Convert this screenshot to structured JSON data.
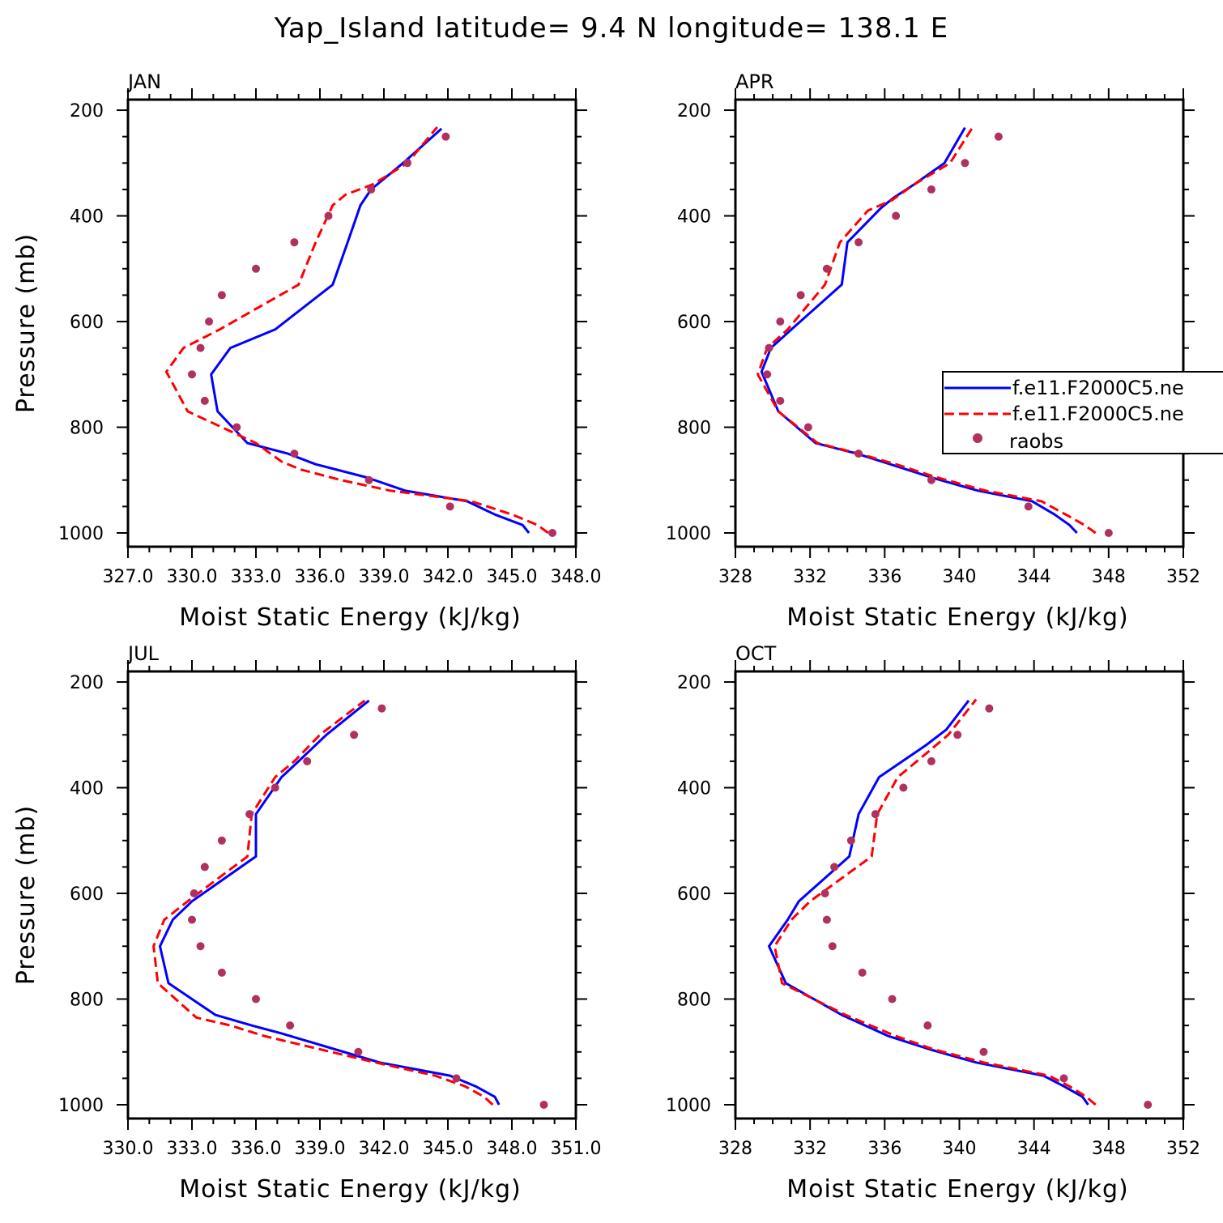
{
  "title": "Yap_Island  latitude= 9.4 N longitude= 138.1 E",
  "colors": {
    "model_1": "#0000ff",
    "model_2": "#ff0000",
    "raobs": "#b03060"
  },
  "legend": {
    "entries": [
      "f.e11.F2000C5.ne",
      "f.e11.F2000C5.ne",
      "raobs"
    ],
    "placement": "panel APR, right, partially cut off"
  },
  "chart_data": [
    {
      "type": "line",
      "panel": "JAN",
      "xlabel": "Moist Static Energy (kJ/kg)",
      "ylabel": "Pressure (mb)",
      "xlim": [
        327.0,
        348.0
      ],
      "xticks": [
        "327.0",
        "330.0",
        "333.0",
        "336.0",
        "339.0",
        "342.0",
        "345.0",
        "348.0"
      ],
      "ylim": [
        200,
        1000
      ],
      "yticks": [
        "200",
        "400",
        "600",
        "800",
        "1000"
      ],
      "y_inverted": true,
      "series": [
        {
          "legend_index": 0,
          "style": "solid",
          "x": [
            345.8,
            345.5,
            344.2,
            342.9,
            340.0,
            338.2,
            335.8,
            334.5,
            332.6,
            331.2,
            330.9,
            331.8,
            333.9,
            336.6,
            337.3,
            337.9,
            338.4,
            339.9,
            341.7
          ],
          "y": [
            1000,
            985,
            965,
            940,
            920,
            895,
            870,
            850,
            830,
            770,
            700,
            650,
            615,
            530,
            450,
            380,
            350,
            300,
            235
          ]
        },
        {
          "legend_index": 1,
          "style": "dashed",
          "x": [
            346.7,
            346.2,
            345.0,
            343.1,
            339.3,
            337.0,
            335.1,
            334.2,
            333.0,
            329.8,
            328.8,
            329.6,
            331.3,
            335.0,
            335.8,
            336.6,
            337.2,
            338.5,
            340.1,
            341.5
          ],
          "y": [
            1000,
            985,
            965,
            940,
            920,
            900,
            880,
            865,
            830,
            770,
            695,
            650,
            615,
            530,
            450,
            380,
            360,
            340,
            300,
            232
          ]
        },
        {
          "legend_index": 2,
          "style": "dots",
          "x": [
            346.9,
            342.1,
            338.3,
            334.8,
            332.1,
            330.6,
            330.0,
            330.4,
            330.8,
            331.4,
            333.0,
            334.8,
            336.4,
            338.4,
            340.1,
            341.9
          ],
          "y": [
            1000,
            950,
            900,
            850,
            800,
            750,
            700,
            650,
            600,
            550,
            500,
            450,
            400,
            350,
            300,
            250
          ]
        }
      ]
    },
    {
      "type": "line",
      "panel": "APR",
      "xlabel": "Moist Static Energy (kJ/kg)",
      "ylabel": "",
      "xlim": [
        328,
        352
      ],
      "xticks": [
        "328",
        "332",
        "336",
        "340",
        "344",
        "348",
        "352"
      ],
      "ylim": [
        200,
        1000
      ],
      "yticks": [
        "200",
        "400",
        "600",
        "800",
        "1000"
      ],
      "y_inverted": true,
      "series": [
        {
          "legend_index": 0,
          "style": "solid",
          "x": [
            346.3,
            345.9,
            345.1,
            343.9,
            341.0,
            338.5,
            336.3,
            334.5,
            332.3,
            330.3,
            329.4,
            329.9,
            331.0,
            333.7,
            334.0,
            335.8,
            336.5,
            337.6,
            339.2,
            340.3
          ],
          "y": [
            1000,
            985,
            965,
            940,
            920,
            895,
            870,
            850,
            830,
            770,
            695,
            650,
            615,
            530,
            450,
            385,
            365,
            340,
            300,
            233
          ]
        },
        {
          "legend_index": 1,
          "style": "dashed",
          "x": [
            347.3,
            346.7,
            345.7,
            344.4,
            341.4,
            338.8,
            336.6,
            334.6,
            332.4,
            330.3,
            329.2,
            329.7,
            330.8,
            332.8,
            333.6,
            335.1,
            336.4,
            337.6,
            339.5,
            340.7
          ],
          "y": [
            1000,
            985,
            965,
            940,
            920,
            895,
            870,
            850,
            830,
            770,
            700,
            650,
            615,
            530,
            450,
            390,
            370,
            340,
            300,
            233
          ]
        },
        {
          "legend_index": 2,
          "style": "dots",
          "x": [
            348.0,
            343.7,
            338.5,
            334.6,
            331.9,
            330.4,
            329.7,
            329.8,
            330.4,
            331.5,
            332.9,
            334.6,
            336.6,
            338.5,
            340.3,
            342.1
          ],
          "y": [
            1000,
            950,
            900,
            850,
            800,
            750,
            700,
            650,
            600,
            550,
            500,
            450,
            400,
            350,
            300,
            250
          ]
        }
      ]
    },
    {
      "type": "line",
      "panel": "JUL",
      "xlabel": "Moist Static Energy (kJ/kg)",
      "ylabel": "Pressure (mb)",
      "xlim": [
        330.0,
        351.0
      ],
      "xticks": [
        "330.0",
        "333.0",
        "336.0",
        "339.0",
        "342.0",
        "345.0",
        "348.0",
        "351.0"
      ],
      "ylim": [
        200,
        1000
      ],
      "yticks": [
        "200",
        "400",
        "600",
        "800",
        "1000"
      ],
      "y_inverted": true,
      "series": [
        {
          "legend_index": 0,
          "style": "solid",
          "x": [
            347.4,
            347.2,
            346.3,
            345.1,
            341.8,
            339.7,
            337.2,
            335.8,
            334.1,
            331.9,
            331.5,
            332.1,
            333.0,
            336.0,
            336.0,
            337.2,
            338.0,
            339.3,
            341.3
          ],
          "y": [
            1000,
            985,
            965,
            945,
            920,
            895,
            865,
            850,
            830,
            770,
            700,
            650,
            615,
            530,
            450,
            380,
            350,
            300,
            235
          ]
        },
        {
          "legend_index": 1,
          "style": "dashed",
          "x": [
            347.1,
            346.7,
            345.8,
            344.4,
            341.6,
            339.0,
            336.4,
            334.8,
            333.2,
            331.4,
            331.2,
            331.7,
            332.8,
            335.6,
            335.8,
            336.9,
            337.8,
            339.0,
            341.1
          ],
          "y": [
            1000,
            985,
            965,
            945,
            920,
            895,
            870,
            850,
            835,
            770,
            700,
            650,
            615,
            530,
            450,
            380,
            350,
            300,
            235
          ]
        },
        {
          "legend_index": 2,
          "style": "dots",
          "x": [
            349.5,
            345.4,
            340.8,
            337.6,
            336.0,
            334.4,
            333.4,
            333.0,
            333.1,
            333.6,
            334.4,
            335.7,
            336.9,
            338.4,
            340.6,
            341.9
          ],
          "y": [
            1000,
            950,
            900,
            850,
            800,
            750,
            700,
            650,
            600,
            550,
            500,
            450,
            400,
            350,
            300,
            250
          ]
        }
      ]
    },
    {
      "type": "line",
      "panel": "OCT",
      "xlabel": "Moist Static Energy (kJ/kg)",
      "ylabel": "",
      "xlim": [
        328,
        352
      ],
      "xticks": [
        "328",
        "332",
        "336",
        "340",
        "344",
        "348",
        "352"
      ],
      "ylim": [
        200,
        1000
      ],
      "yticks": [
        "200",
        "400",
        "600",
        "800",
        "1000"
      ],
      "y_inverted": true,
      "series": [
        {
          "legend_index": 0,
          "style": "solid",
          "x": [
            346.9,
            346.6,
            345.6,
            344.5,
            340.9,
            338.4,
            336.2,
            333.7,
            330.7,
            329.8,
            330.8,
            331.4,
            334.1,
            334.6,
            335.7,
            338.2,
            339.3,
            340.5
          ],
          "y": [
            1000,
            985,
            965,
            945,
            920,
            895,
            870,
            830,
            770,
            700,
            650,
            615,
            530,
            450,
            380,
            320,
            290,
            235
          ]
        },
        {
          "legend_index": 1,
          "style": "dashed",
          "x": [
            347.3,
            346.8,
            345.9,
            344.8,
            341.3,
            338.6,
            336.6,
            333.9,
            330.5,
            330.1,
            331.0,
            332.0,
            335.3,
            335.6,
            336.7,
            338.4,
            339.4,
            340.9
          ],
          "y": [
            1000,
            985,
            965,
            945,
            920,
            895,
            870,
            830,
            770,
            700,
            650,
            615,
            530,
            450,
            380,
            330,
            300,
            233
          ]
        },
        {
          "legend_index": 2,
          "style": "dots",
          "x": [
            350.1,
            345.6,
            341.3,
            338.3,
            336.4,
            334.8,
            333.2,
            332.9,
            332.8,
            333.3,
            334.2,
            335.5,
            337.0,
            338.5,
            339.9,
            341.6
          ],
          "y": [
            1000,
            950,
            900,
            850,
            800,
            750,
            700,
            650,
            600,
            550,
            500,
            450,
            400,
            350,
            300,
            250
          ]
        }
      ]
    }
  ]
}
